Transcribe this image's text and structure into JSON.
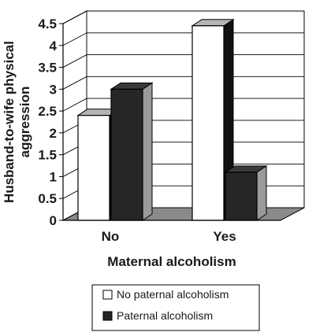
{
  "chart_data": {
    "type": "bar",
    "title": "",
    "xlabel": "Maternal alcoholism",
    "ylabel": "Husband-to-wife physical aggression",
    "categories": [
      "No",
      "Yes"
    ],
    "series": [
      {
        "name": "No paternal alcoholism",
        "values": [
          2.4,
          4.45
        ]
      },
      {
        "name": "Paternal alcoholism",
        "values": [
          3.0,
          1.1
        ]
      }
    ],
    "ylim": [
      0,
      4.5
    ],
    "yticks": [
      "0",
      "0.5",
      "1",
      "1.5",
      "2",
      "2.5",
      "3",
      "3.5",
      "4",
      "4.5"
    ],
    "grid": true,
    "legend_position": "bottom",
    "style": "3d",
    "colors": {
      "no_paternal": "#ffffff",
      "paternal": "#262626",
      "floor": "#8a8a8a",
      "side_dark": "#111111",
      "side_light": "#9a9a9a",
      "top_light": "#b5b5b5",
      "top_dark": "#3a3a3a",
      "axis": "#000000",
      "text": "#1a1a1a"
    }
  }
}
